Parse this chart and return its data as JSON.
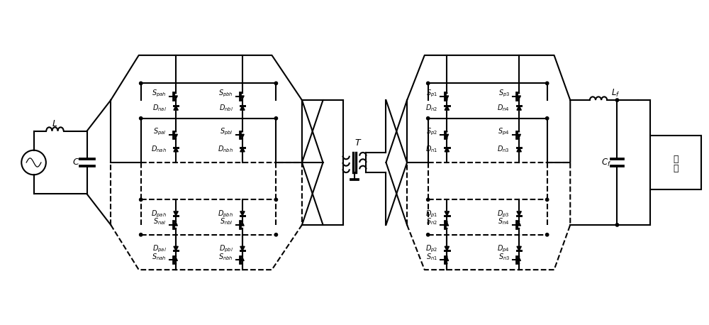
{
  "fig_width": 10.0,
  "fig_height": 4.58,
  "dpi": 100,
  "bg_color": "#ffffff",
  "line_color": "#000000",
  "line_width": 1.5,
  "font_size": 8.0
}
